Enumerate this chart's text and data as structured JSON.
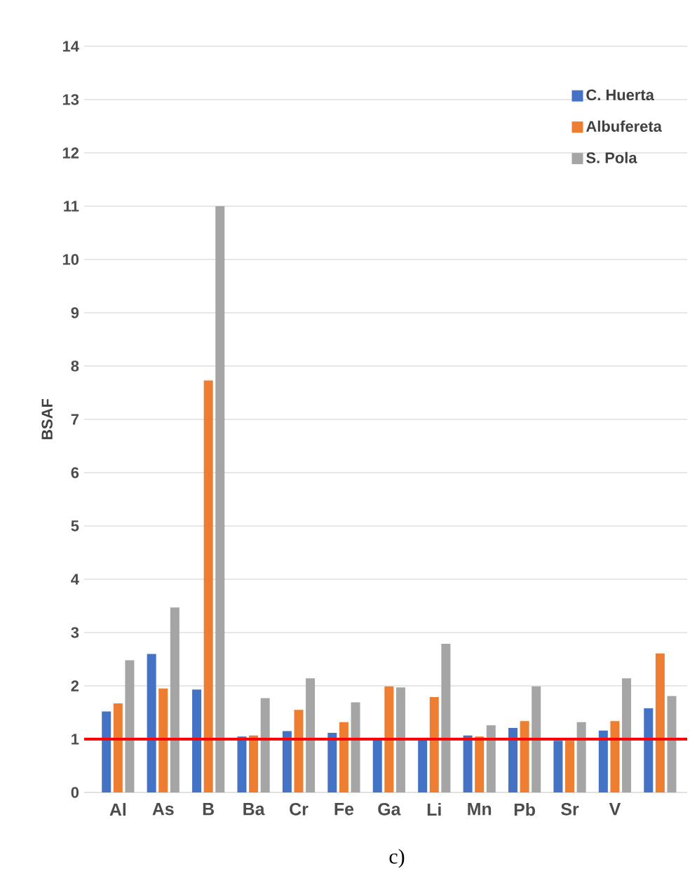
{
  "chart_data": {
    "type": "bar",
    "categories": [
      "Al",
      "As",
      "B",
      "Ba",
      "Cr",
      "Fe",
      "Ga",
      "Li",
      "Mn",
      "Pb",
      "Sr",
      "V",
      null
    ],
    "series": [
      {
        "name": "C. Huerta",
        "color": "#4472c4",
        "values": [
          1.52,
          2.6,
          1.93,
          1.05,
          1.15,
          1.12,
          1.0,
          1.0,
          1.07,
          1.21,
          0.97,
          1.16,
          1.58
        ]
      },
      {
        "name": "Albufereta",
        "color": "#ed7d31",
        "values": [
          1.67,
          1.95,
          7.73,
          1.07,
          1.55,
          1.32,
          1.99,
          1.79,
          1.05,
          1.34,
          0.97,
          1.34,
          2.61
        ]
      },
      {
        "name": "S. Pola",
        "color": "#a5a5a5",
        "values": [
          2.48,
          3.47,
          11.0,
          1.77,
          2.14,
          1.69,
          1.97,
          2.79,
          1.26,
          1.99,
          1.32,
          2.14,
          1.81
        ]
      }
    ],
    "ylabel": "BSAF",
    "ylim": [
      0,
      14
    ],
    "yticks": [
      0,
      1,
      2,
      3,
      4,
      5,
      6,
      7,
      8,
      9,
      10,
      11,
      12,
      13,
      14
    ],
    "grid": "y",
    "legend": "top right",
    "ref_lines": [
      {
        "axis": "y",
        "value": 1,
        "color": "#ff0000"
      }
    ],
    "annotations": [
      "c)"
    ]
  }
}
